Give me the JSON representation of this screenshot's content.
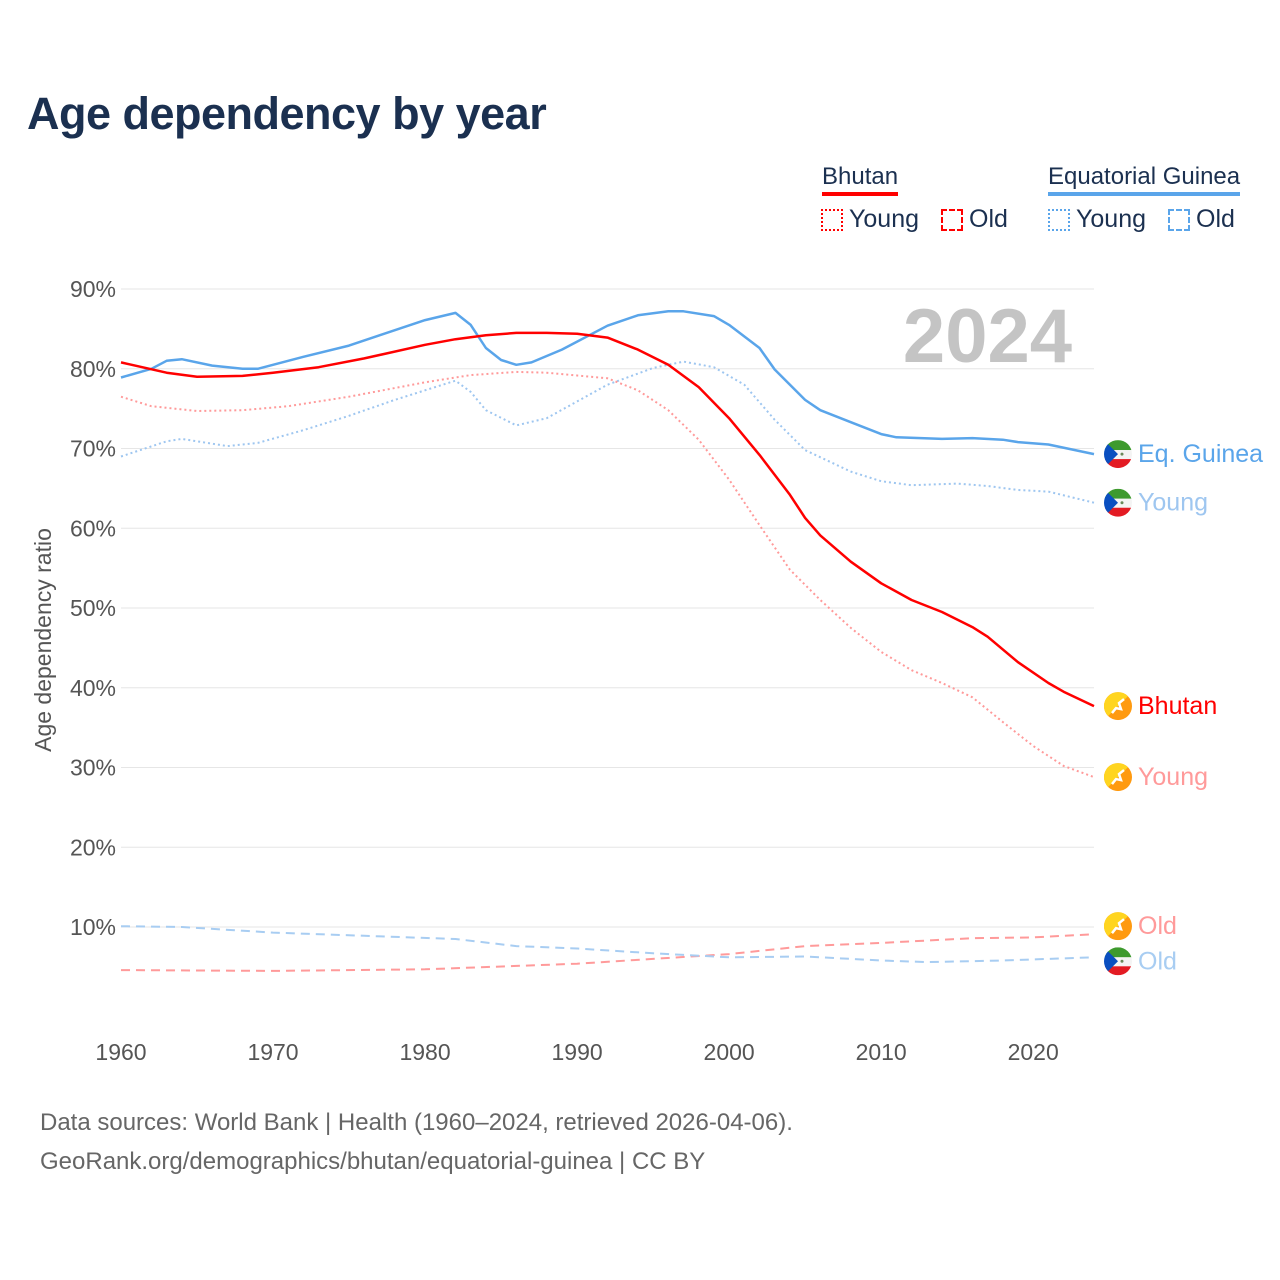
{
  "title": "Age dependency by year",
  "legend": {
    "groups": [
      {
        "name": "Bhutan",
        "color": "#ff0000",
        "light": "#ff9a9a",
        "items": [
          "Young",
          "Old"
        ]
      },
      {
        "name": "Equatorial Guinea",
        "color": "#5aa5ea",
        "light": "#9ec6f0",
        "items": [
          "Young",
          "Old"
        ]
      }
    ]
  },
  "year_watermark": "2024",
  "footer": {
    "line1": "Data sources: World Bank | Health (1960–2024, retrieved 2026-04-06).",
    "line2": "GeoRank.org/demographics/bhutan/equatorial-guinea | CC BY"
  },
  "chart_data": {
    "type": "line",
    "title": "Age dependency by year",
    "xlabel": "",
    "ylabel": "Age dependency ratio",
    "xlim": [
      1960,
      2024
    ],
    "ylim": [
      0,
      90
    ],
    "x_ticks": [
      1960,
      1970,
      1980,
      1990,
      2000,
      2010,
      2020
    ],
    "y_ticks": [
      10,
      20,
      30,
      40,
      50,
      60,
      70,
      80,
      90
    ],
    "y_tick_labels": [
      "10%",
      "20%",
      "30%",
      "40%",
      "50%",
      "60%",
      "70%",
      "80%",
      "90%"
    ],
    "grid": true,
    "legend_position": "top-right",
    "series": [
      {
        "name": "Equatorial Guinea",
        "end_label": "Eq. Guinea",
        "country": "eq-guinea",
        "color": "#5aa5ea",
        "style": "solid",
        "x": [
          1960,
          1962,
          1963,
          1964,
          1966,
          1968,
          1969,
          1972,
          1975,
          1977,
          1980,
          1982,
          1983,
          1984,
          1985,
          1986,
          1987,
          1989,
          1992,
          1994,
          1996,
          1997,
          1999,
          2000,
          2002,
          2003,
          2005,
          2006,
          2008,
          2010,
          2011,
          2014,
          2016,
          2018,
          2019,
          2021,
          2024
        ],
        "y": [
          78.9,
          80,
          81,
          81.2,
          80.4,
          80,
          80,
          81.5,
          82.9,
          84.2,
          86.1,
          87,
          85.5,
          82.6,
          81.1,
          80.5,
          80.8,
          82.4,
          85.4,
          86.7,
          87.2,
          87.2,
          86.6,
          85.5,
          82.6,
          79.9,
          76.1,
          74.8,
          73.3,
          71.8,
          71.4,
          71.2,
          71.3,
          71.1,
          70.8,
          70.5,
          69.3
        ]
      },
      {
        "name": "Equatorial Guinea Young",
        "end_label": "Young",
        "country": "eq-guinea",
        "color": "#9ec6f0",
        "style": "dotted",
        "x": [
          1960,
          1963,
          1964,
          1967,
          1969,
          1972,
          1975,
          1978,
          1982,
          1983,
          1984,
          1986,
          1988,
          1992,
          1995,
          1997,
          1999,
          2001,
          2003,
          2005,
          2008,
          2010,
          2012,
          2015,
          2017,
          2019,
          2021,
          2024
        ],
        "y": [
          69,
          70.9,
          71.2,
          70.3,
          70.7,
          72.3,
          74.1,
          76.1,
          78.5,
          77.1,
          74.8,
          72.9,
          73.8,
          78,
          80.1,
          80.9,
          80.2,
          78,
          73.6,
          69.8,
          67.1,
          65.9,
          65.4,
          65.6,
          65.3,
          64.8,
          64.6,
          63.2
        ]
      },
      {
        "name": "Bhutan",
        "end_label": "Bhutan",
        "country": "bhutan",
        "color": "#ff0000",
        "style": "solid",
        "x": [
          1960,
          1963,
          1965,
          1968,
          1970,
          1973,
          1976,
          1980,
          1982,
          1984,
          1986,
          1988,
          1990,
          1992,
          1994,
          1996,
          1998,
          2000,
          2002,
          2004,
          2005,
          2006,
          2008,
          2010,
          2012,
          2014,
          2016,
          2017,
          2019,
          2021,
          2022,
          2024
        ],
        "y": [
          80.8,
          79.5,
          79,
          79.1,
          79.5,
          80.2,
          81.3,
          83,
          83.7,
          84.2,
          84.5,
          84.5,
          84.4,
          83.9,
          82.4,
          80.5,
          77.7,
          73.8,
          69.2,
          64.2,
          61.3,
          59.1,
          55.8,
          53.1,
          51,
          49.5,
          47.6,
          46.4,
          43.2,
          40.6,
          39.5,
          37.7
        ]
      },
      {
        "name": "Bhutan Young",
        "end_label": "Young",
        "country": "bhutan",
        "color": "#ff9a9a",
        "style": "dotted",
        "x": [
          1960,
          1962,
          1965,
          1968,
          1971,
          1975,
          1980,
          1983,
          1986,
          1988,
          1992,
          1994,
          1996,
          1998,
          2000,
          2002,
          2004,
          2006,
          2008,
          2010,
          2012,
          2014,
          2016,
          2018,
          2020,
          2022,
          2024
        ],
        "y": [
          76.5,
          75.3,
          74.7,
          74.8,
          75.3,
          76.5,
          78.3,
          79.2,
          79.6,
          79.5,
          78.8,
          77.3,
          74.8,
          71.1,
          66.1,
          60.4,
          54.8,
          51,
          47.5,
          44.5,
          42.2,
          40.6,
          38.8,
          35.7,
          32.7,
          30.2,
          28.8
        ]
      },
      {
        "name": "Bhutan Old",
        "end_label": "Old",
        "country": "bhutan",
        "color": "#ff9a9a",
        "style": "dashed",
        "x": [
          1960,
          1970,
          1980,
          1990,
          2000,
          2005,
          2010,
          2016,
          2020,
          2024
        ],
        "y": [
          4.6,
          4.5,
          4.7,
          5.4,
          6.6,
          7.6,
          8,
          8.6,
          8.7,
          9.1
        ]
      },
      {
        "name": "Equatorial Guinea Old",
        "end_label": "Old",
        "country": "eq-guinea",
        "color": "#a8cdf2",
        "style": "dashed",
        "x": [
          1960,
          1964,
          1970,
          1976,
          1982,
          1986,
          1990,
          1995,
          2000,
          2005,
          2010,
          2013,
          2018,
          2024
        ],
        "y": [
          10.1,
          10,
          9.3,
          8.9,
          8.5,
          7.6,
          7.3,
          6.7,
          6.2,
          6.3,
          5.8,
          5.6,
          5.8,
          6.2
        ]
      }
    ]
  }
}
